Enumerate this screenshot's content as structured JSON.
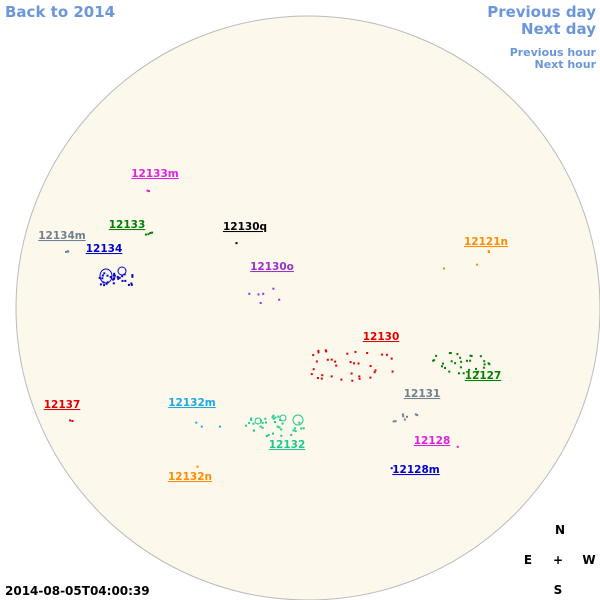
{
  "navigation": {
    "back": "Back to 2014",
    "previous_day": "Previous day",
    "next_day": "Next day",
    "previous_hour": "Previous hour",
    "next_hour": "Next hour"
  },
  "regions": [
    {
      "label": "12133m",
      "color": "#e020e0"
    },
    {
      "label": "12133",
      "color": "#008000"
    },
    {
      "label": "12134m",
      "color": "#708090"
    },
    {
      "label": "12134",
      "color": "#0000cc"
    },
    {
      "label": "12130q",
      "color": "#000000"
    },
    {
      "label": "12130o",
      "color": "#9932cc"
    },
    {
      "label": "12121n",
      "color": "#ff8c00"
    },
    {
      "label": "12130",
      "color": "#e00000"
    },
    {
      "label": "12127",
      "color": "#008000"
    },
    {
      "label": "12131",
      "color": "#708090"
    },
    {
      "label": "12137",
      "color": "#e00000"
    },
    {
      "label": "12132m",
      "color": "#1ca8e0"
    },
    {
      "label": "12128",
      "color": "#e020e0"
    },
    {
      "label": "12132",
      "color": "#20c890"
    },
    {
      "label": "12128m",
      "color": "#0000cc"
    },
    {
      "label": "12132n",
      "color": "#ff8c00"
    }
  ],
  "compass": {
    "north": "N",
    "east": "E",
    "center": "+",
    "west": "W",
    "south": "S"
  },
  "timestamp": "2014-08-05T04:00:39"
}
